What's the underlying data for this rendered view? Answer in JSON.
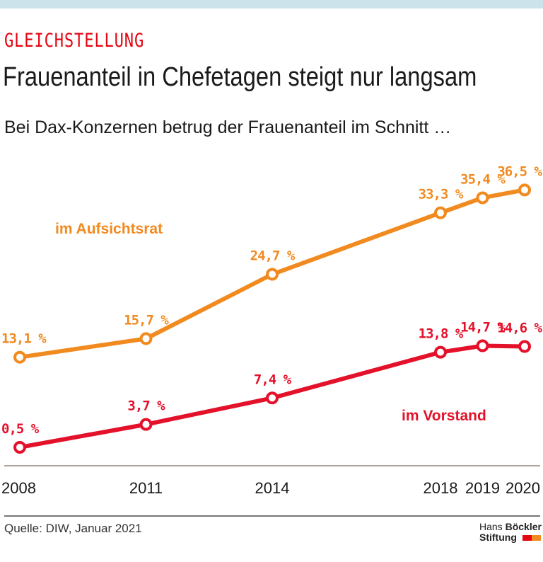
{
  "header": {
    "kicker": "GLEICHSTELLUNG",
    "title": "Frauenanteil in Chefetagen steigt nur langsam",
    "subtitle": "Bei Dax-Konzernen betrug der Frauenanteil im Schnitt …"
  },
  "chart_data": {
    "type": "line",
    "categories": [
      "2008",
      "2011",
      "2014",
      "2018",
      "2019",
      "2020"
    ],
    "x": [
      2008,
      2011,
      2014,
      2018,
      2019,
      2020
    ],
    "series": [
      {
        "name": "im Aufsichtsrat",
        "color": "#f18a1f",
        "values": [
          13.1,
          15.7,
          24.7,
          33.3,
          35.4,
          36.5
        ],
        "labels": [
          "13,1 %",
          "15,7 %",
          "24,7 %",
          "33,3 %",
          "35,4 %",
          "36,5 %"
        ]
      },
      {
        "name": "im Vorstand",
        "color": "#e4112a",
        "values": [
          0.5,
          3.7,
          7.4,
          13.8,
          14.7,
          14.6
        ],
        "labels": [
          "0,5 %",
          "3,7 %",
          "7,4 %",
          "13,8 %",
          "14,7 %",
          "14,6 %"
        ]
      }
    ],
    "legend_placement": "inline",
    "grid": false
  },
  "footer": {
    "source": "Quelle: DIW, Januar 2021",
    "logo_line1_a": "Hans ",
    "logo_line1_b": "Böckler",
    "logo_line2": "Stiftung",
    "logo_colors": [
      "#e30613",
      "#f18a1f"
    ]
  }
}
